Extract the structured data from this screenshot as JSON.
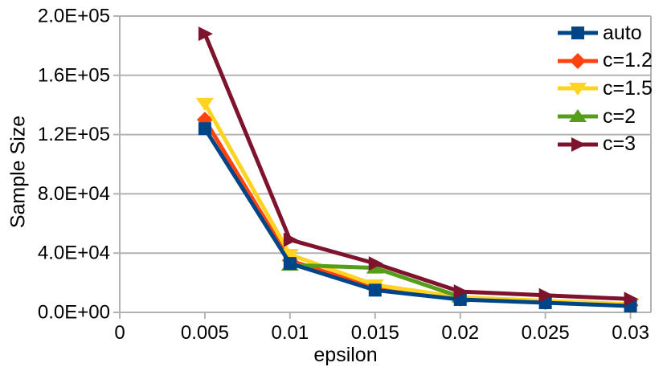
{
  "chart_data": {
    "type": "line",
    "title": "",
    "xlabel": "epsilon",
    "ylabel": "Sample Size",
    "xlim": [
      0,
      0.0312
    ],
    "ylim": [
      0,
      200000
    ],
    "x_ticks": [
      0,
      0.005,
      0.01,
      0.015,
      0.02,
      0.025,
      0.03
    ],
    "x_tick_labels": [
      "0",
      "0.005",
      "0.01",
      "0.015",
      "0.02",
      "0.025",
      "0.03"
    ],
    "y_ticks": [
      0,
      40000,
      80000,
      120000,
      160000,
      200000
    ],
    "y_tick_labels": [
      "0.0E+00",
      "4.0E+04",
      "8.0E+04",
      "1.2E+05",
      "1.6E+05",
      "2.0E+05"
    ],
    "grid": "horizontal-only",
    "grid_color": "#b3b3b3",
    "axis_color": "#b3b3b3",
    "text_color": "#000000",
    "legend_position": "top-right-inside",
    "series": [
      {
        "name": "auto",
        "color": "#004586",
        "marker": "square",
        "x": [
          0.005,
          0.01,
          0.015,
          0.02,
          0.025,
          0.03
        ],
        "values": [
          124000,
          33000,
          15000,
          8700,
          6500,
          4300
        ]
      },
      {
        "name": "c=1.2",
        "color": "#FF420E",
        "marker": "diamond",
        "x": [
          0.005,
          0.01,
          0.015,
          0.02,
          0.025,
          0.03
        ],
        "values": [
          130000,
          35000,
          16500,
          9300,
          7000,
          4800
        ]
      },
      {
        "name": "c=1.5",
        "color": "#FFD320",
        "marker": "triangle-down",
        "x": [
          0.005,
          0.01,
          0.015,
          0.02,
          0.025,
          0.03
        ],
        "values": [
          141000,
          39000,
          18500,
          10200,
          7800,
          5500
        ]
      },
      {
        "name": "c=2",
        "color": "#579D1C",
        "marker": "triangle-up",
        "x": [
          0.01,
          0.015,
          0.02
        ],
        "values": [
          32000,
          30000,
          10500
        ]
      },
      {
        "name": "c=3",
        "color": "#7E132E",
        "marker": "triangle-right",
        "x": [
          0.005,
          0.01,
          0.015,
          0.02,
          0.025,
          0.03
        ],
        "values": [
          188000,
          49000,
          33000,
          14000,
          11500,
          9000
        ]
      }
    ],
    "draw_order": [
      "c=1.2",
      "c=1.5",
      "c=2",
      "auto",
      "c=3"
    ]
  }
}
